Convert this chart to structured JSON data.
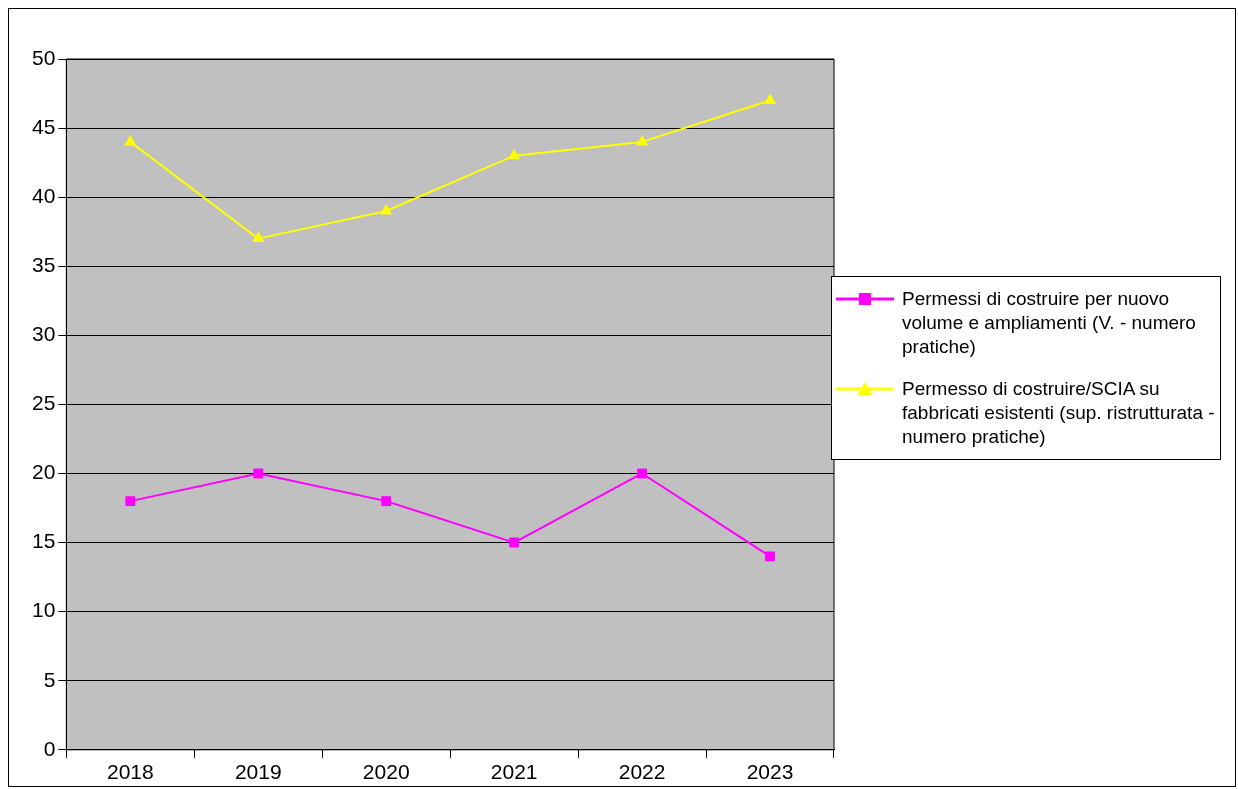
{
  "chart_data": {
    "type": "line",
    "categories": [
      "2018",
      "2019",
      "2020",
      "2021",
      "2022",
      "2023"
    ],
    "series": [
      {
        "name": "Permessi di costruire per nuovo volume e ampliamenti (V. - numero pratiche)",
        "color": "#ff00ff",
        "marker": "square",
        "values": [
          18,
          20,
          18,
          15,
          20,
          14
        ]
      },
      {
        "name": "Permesso di costruire/SCIA su fabbricati esistenti (sup. ristrutturata - numero pratiche)",
        "color": "#ffff00",
        "marker": "triangle",
        "values": [
          44,
          37,
          39,
          43,
          44,
          47
        ]
      }
    ],
    "ylim": [
      0,
      50
    ],
    "yticks": [
      0,
      5,
      10,
      15,
      20,
      25,
      30,
      35,
      40,
      45,
      50
    ],
    "grid": "y",
    "legend": "right",
    "line_style": "solid"
  }
}
